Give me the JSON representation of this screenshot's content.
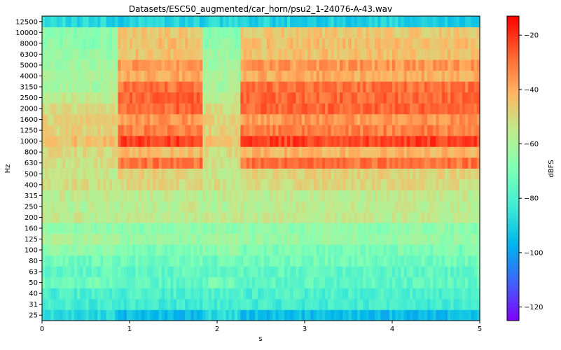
{
  "chart_data": {
    "type": "heatmap",
    "title": "Datasets/ESC50_augmented/car_horn/psu2_1-24076-A-43.wav",
    "xlabel": "s",
    "ylabel": "Hz",
    "xlim": [
      0,
      5
    ],
    "x_ticks": [
      "0",
      "1",
      "2",
      "3",
      "4",
      "5"
    ],
    "y_ticks": [
      "25",
      "31",
      "40",
      "50",
      "63",
      "80",
      "100",
      "125",
      "160",
      "200",
      "250",
      "315",
      "400",
      "500",
      "630",
      "800",
      "1000",
      "1250",
      "1600",
      "2000",
      "2500",
      "3150",
      "4000",
      "5000",
      "6300",
      "8000",
      "10000",
      "12500"
    ],
    "colorbar": {
      "label": "dBFS",
      "range": [
        -125,
        -13
      ],
      "ticks": [
        -120,
        -100,
        -80,
        -60,
        -40,
        -20
      ],
      "tick_labels": [
        "−120",
        "−100",
        "−80",
        "−60",
        "−40",
        "−20"
      ],
      "colormap": "rainbow"
    },
    "time_segments": [
      {
        "start": 0.0,
        "end": 0.88,
        "state": "background"
      },
      {
        "start": 0.88,
        "end": 1.82,
        "state": "horn"
      },
      {
        "start": 1.82,
        "end": 2.28,
        "state": "background"
      },
      {
        "start": 2.28,
        "end": 5.0,
        "state": "horn"
      }
    ],
    "band_levels_background": [
      -88,
      -82,
      -80,
      -72,
      -76,
      -72,
      -66,
      -60,
      -66,
      -56,
      -58,
      -56,
      -52,
      -54,
      -52,
      -50,
      -44,
      -48,
      -48,
      -52,
      -56,
      -60,
      -60,
      -62,
      -64,
      -66,
      -66,
      -88
    ],
    "band_levels_horn": [
      -95,
      -82,
      -80,
      -76,
      -76,
      -72,
      -70,
      -64,
      -66,
      -56,
      -56,
      -56,
      -50,
      -48,
      -30,
      -42,
      -22,
      -32,
      -36,
      -28,
      -28,
      -30,
      -40,
      -36,
      -44,
      -44,
      -46,
      -90
    ]
  }
}
